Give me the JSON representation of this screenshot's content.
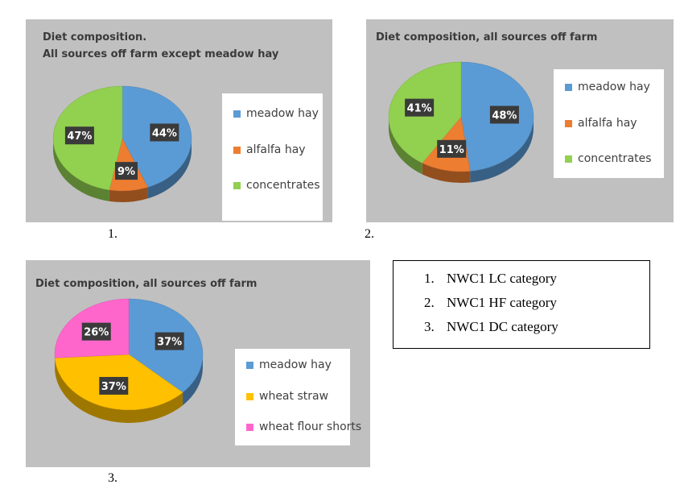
{
  "colors": {
    "meadow_hay": "#5b9bd5",
    "alfalfa_hay": "#ed7d31",
    "concentrates": "#92d050",
    "wheat_straw": "#ffc000",
    "wheat_flour_shorts": "#ff66cc",
    "label_bg": "#3a3a3a",
    "panel_bg": "#c0c0c0"
  },
  "figure_numbers": [
    "1.",
    "2.",
    "3."
  ],
  "key": {
    "items": [
      {
        "num": "1.",
        "text": "NWC1 LC category"
      },
      {
        "num": "2.",
        "text": "NWC1 HF category"
      },
      {
        "num": "3.",
        "text": "NWC1 DC category"
      }
    ]
  },
  "chart_data": [
    {
      "type": "pie",
      "title_lines": [
        "Diet composition.",
        "All sources off farm except meadow hay"
      ],
      "categories": [
        "meadow hay",
        "alfalfa hay",
        "concentrates"
      ],
      "values": [
        44,
        9,
        47
      ],
      "labels": [
        "44%",
        "9%",
        "47%"
      ],
      "colors": [
        "#5b9bd5",
        "#ed7d31",
        "#92d050"
      ],
      "legend": "right",
      "style": "3d"
    },
    {
      "type": "pie",
      "title_lines": [
        "Diet composition, all sources off farm"
      ],
      "categories": [
        "meadow hay",
        "alfalfa hay",
        "concentrates"
      ],
      "values": [
        48,
        11,
        41
      ],
      "labels": [
        "48%",
        "11%",
        "41%"
      ],
      "colors": [
        "#5b9bd5",
        "#ed7d31",
        "#92d050"
      ],
      "legend": "right",
      "style": "3d"
    },
    {
      "type": "pie",
      "title_lines": [
        "Diet composition, all sources off farm"
      ],
      "categories": [
        "meadow hay",
        "wheat straw",
        "wheat flour shorts"
      ],
      "values": [
        37,
        37,
        26
      ],
      "labels": [
        "37%",
        "37%",
        "26%"
      ],
      "colors": [
        "#5b9bd5",
        "#ffc000",
        "#ff66cc"
      ],
      "legend": "right",
      "style": "3d"
    }
  ]
}
